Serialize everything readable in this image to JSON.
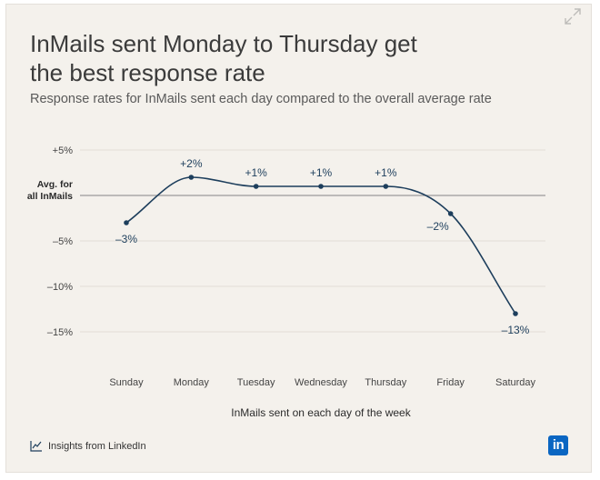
{
  "title_line1": "InMails sent Monday to Thursday get",
  "title_line2": "the best response rate",
  "subtitle": "Response rates for InMails sent each day compared to the overall average rate",
  "footer": {
    "source_label": "Insights from LinkedIn",
    "logo_text": "in"
  },
  "colors": {
    "background": "#f4f1ec",
    "line": "#1d3e5c",
    "grid": "#e2ddd6",
    "baseline": "#9a9a9a",
    "brand": "#0a66c2"
  },
  "icons": [
    "expand-icon",
    "chart-icon",
    "linkedin-logo-icon"
  ],
  "chart_data": {
    "type": "line",
    "title": "InMails sent Monday to Thursday get the best response rate",
    "subtitle": "Response rates for InMails sent each day compared to the overall average rate",
    "xlabel": "InMails sent on each day of the week",
    "ylabel": "",
    "categories": [
      "Sunday",
      "Monday",
      "Tuesday",
      "Wednesday",
      "Thursday",
      "Friday",
      "Saturday"
    ],
    "values": [
      -3,
      2,
      1,
      1,
      1,
      -2,
      -13
    ],
    "data_labels": [
      "–3%",
      "+2%",
      "+1%",
      "+1%",
      "+1%",
      "–2%",
      "–13%"
    ],
    "ylim": [
      -17,
      5.5
    ],
    "yticks": [
      {
        "value": 5,
        "label": "+5%"
      },
      {
        "value": 0,
        "label": "Avg. for all InMails"
      },
      {
        "value": -5,
        "label": "–5%"
      },
      {
        "value": -10,
        "label": "–10%"
      },
      {
        "value": -15,
        "label": "–15%"
      }
    ],
    "baseline_label_lines": [
      "Avg. for",
      "all InMails"
    ],
    "grid": true,
    "legend": "none"
  }
}
